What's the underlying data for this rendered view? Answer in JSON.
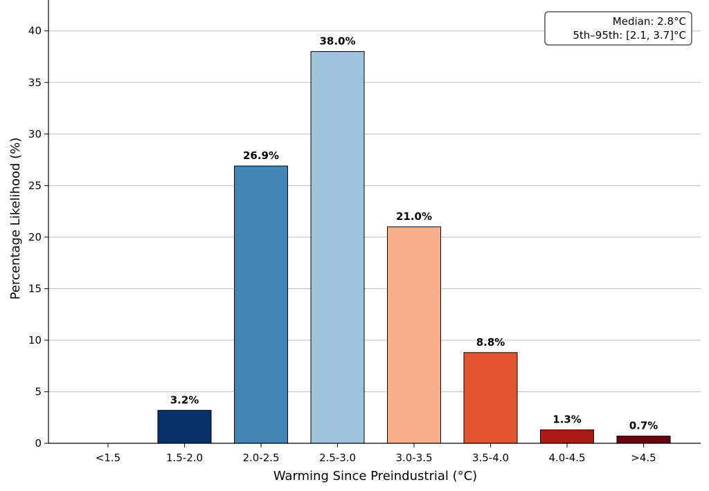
{
  "chart_data": {
    "type": "bar",
    "categories": [
      "<1.5",
      "1.5-2.0",
      "2.0-2.5",
      "2.5-3.0",
      "3.0-3.5",
      "3.5-4.0",
      "4.0-4.5",
      ">4.5"
    ],
    "values": [
      0,
      3.2,
      26.9,
      38.0,
      21.0,
      8.8,
      1.3,
      0.7
    ],
    "data_labels": [
      "",
      "3.2%",
      "26.9%",
      "38.0%",
      "21.0%",
      "8.8%",
      "1.3%",
      "0.7%"
    ],
    "colors": [
      "#08306b",
      "#08306b",
      "#4087b7",
      "#9dc3dd",
      "#f7ae8a",
      "#e2552f",
      "#a81b13",
      "#6b030f"
    ],
    "xlabel": "Warming Since Preindustrial (°C)",
    "ylabel": "Percentage Likelihood (%)",
    "ylim": [
      0,
      43
    ],
    "yticks": [
      0,
      5,
      10,
      15,
      20,
      25,
      30,
      35,
      40
    ],
    "grid": "horizontal",
    "annotation": {
      "lines": [
        "Median: 2.8°C",
        "5th–95th: [2.1, 3.7]°C"
      ],
      "placement": "top-right"
    }
  }
}
